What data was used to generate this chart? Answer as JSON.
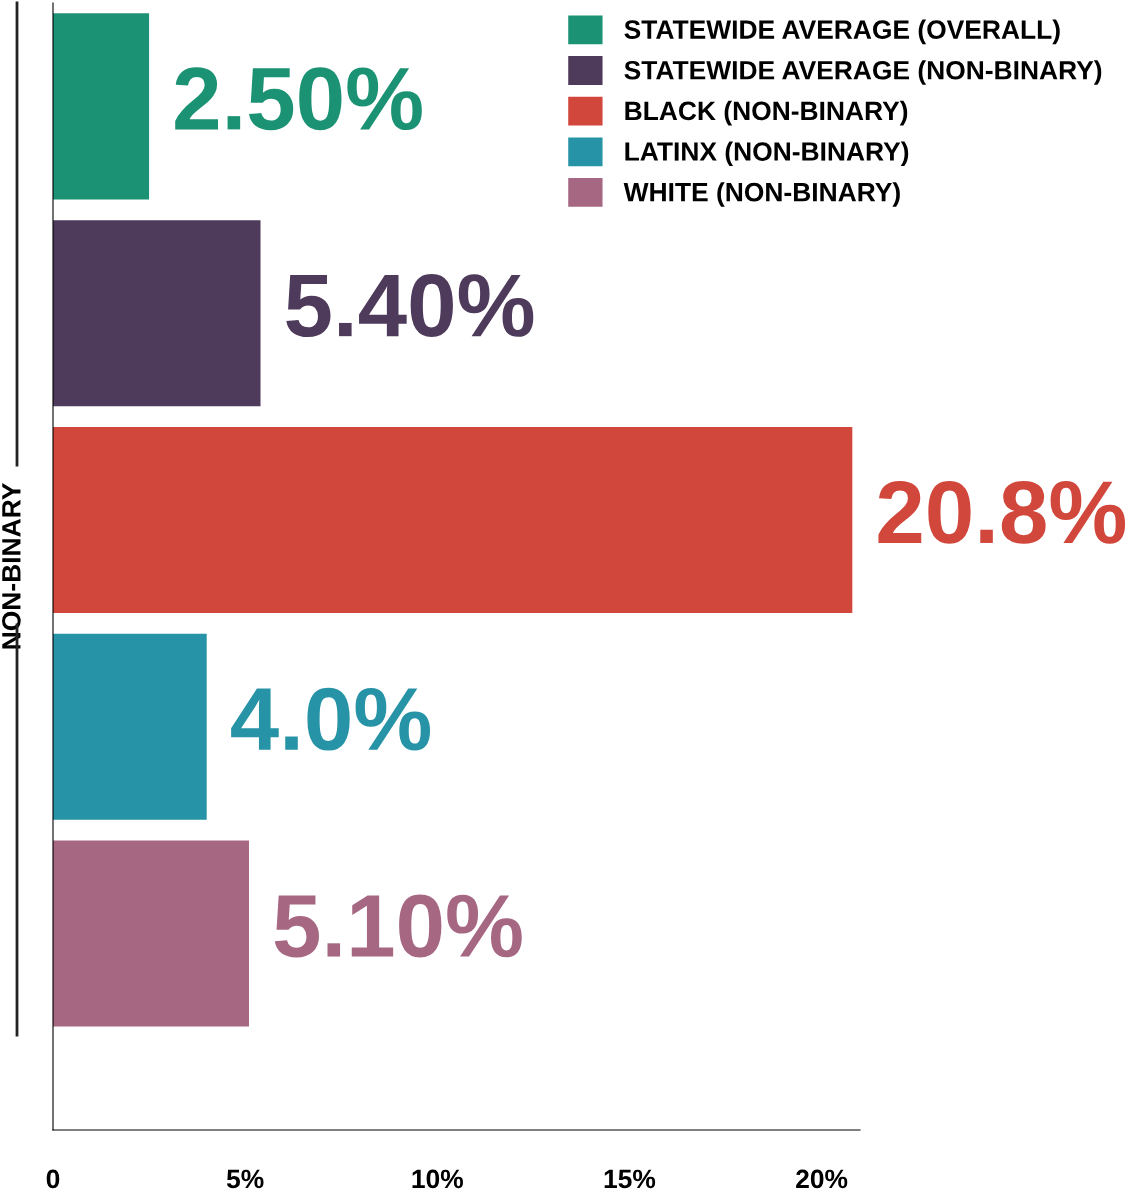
{
  "chart_data": {
    "type": "bar",
    "orientation": "horizontal",
    "ylabel": "NON-BINARY",
    "categories": [
      null,
      null,
      null,
      null,
      null
    ],
    "series": [
      {
        "name": "STATEWIDE AVERAGE (OVERALL)",
        "color": "#1b9273",
        "values": [
          2.5,
          null,
          null,
          null,
          null
        ],
        "value_labels": [
          "2.50%",
          null,
          null,
          null,
          null
        ]
      },
      {
        "name": "STATEWIDE AVERAGE (NON-BINARY)",
        "color": "#4e3a5a",
        "values": [
          null,
          5.4,
          null,
          null,
          null
        ],
        "value_labels": [
          null,
          "5.40%",
          null,
          null,
          null
        ]
      },
      {
        "name": "BLACK (NON-BINARY)",
        "color": "#d2473c",
        "values": [
          null,
          null,
          20.8,
          null,
          null
        ],
        "value_labels": [
          null,
          null,
          "20.8%",
          null,
          null
        ]
      },
      {
        "name": "LATINX (NON-BINARY)",
        "color": "#2793a6",
        "values": [
          null,
          null,
          null,
          4.0,
          null
        ],
        "value_labels": [
          null,
          null,
          null,
          "4.0%",
          null
        ]
      },
      {
        "name": "WHITE (NON-BINARY)",
        "color": "#a66783",
        "values": [
          null,
          null,
          null,
          null,
          5.1
        ],
        "value_labels": [
          null,
          null,
          null,
          null,
          "5.10%"
        ]
      }
    ],
    "xlim": [
      0,
      21
    ],
    "xticks": [
      {
        "value": 0,
        "label": "0"
      },
      {
        "value": 5,
        "label": "5%"
      },
      {
        "value": 10,
        "label": "10%"
      },
      {
        "value": 15,
        "label": "15%"
      },
      {
        "value": 20,
        "label": "20%"
      }
    ],
    "grid": false,
    "legend": "top right"
  }
}
